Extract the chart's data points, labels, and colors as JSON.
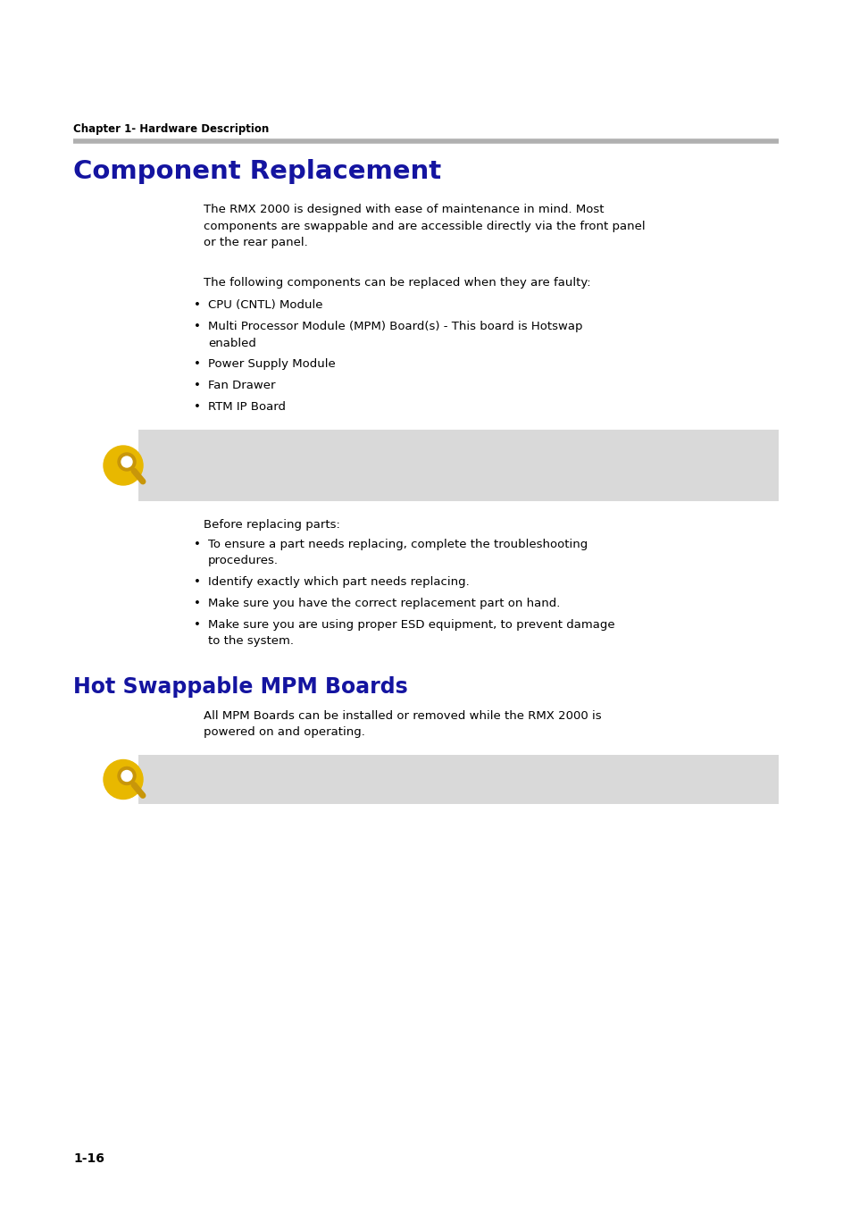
{
  "page_bg": "#ffffff",
  "chapter_label": "Chapter 1- Hardware Description",
  "chapter_label_fontsize": 8.5,
  "divider_color": "#b0b0b0",
  "section1_title": "Component Replacement",
  "section1_title_fontsize": 21,
  "section1_title_color": "#1414a0",
  "body_fontsize": 9.5,
  "para1_text": "The RMX 2000 is designed with ease of maintenance in mind. Most\ncomponents are swappable and are accessible directly via the front panel\nor the rear panel.",
  "para2_text": "The following components can be replaced when they are faulty:",
  "bullet1_items": [
    [
      "CPU (CNTL) Module",
      1
    ],
    [
      "Multi Processor Module (MPM) Board(s) - This board is Hotswap\nenabled",
      2
    ],
    [
      "Power Supply Module",
      1
    ],
    [
      "Fan Drawer",
      1
    ],
    [
      "RTM IP Board",
      1
    ]
  ],
  "note_box_color": "#d9d9d9",
  "before_replacing_text": "Before replacing parts:",
  "bullet2_items": [
    [
      "To ensure a part needs replacing, complete the troubleshooting\nprocedures.",
      2
    ],
    [
      "Identify exactly which part needs replacing.",
      1
    ],
    [
      "Make sure you have the correct replacement part on hand.",
      1
    ],
    [
      "Make sure you are using proper ESD equipment, to prevent damage\nto the system.",
      2
    ]
  ],
  "section2_title": "Hot Swappable MPM Boards",
  "section2_title_fontsize": 17,
  "section2_title_color": "#1414a0",
  "para3_text": "All MPM Boards can be installed or removed while the RMX 2000 is\npowered on and operating.",
  "page_num": "1-16",
  "text_color": "#000000",
  "icon_color_yellow": "#e8b800",
  "icon_color_dark": "#c8960a"
}
